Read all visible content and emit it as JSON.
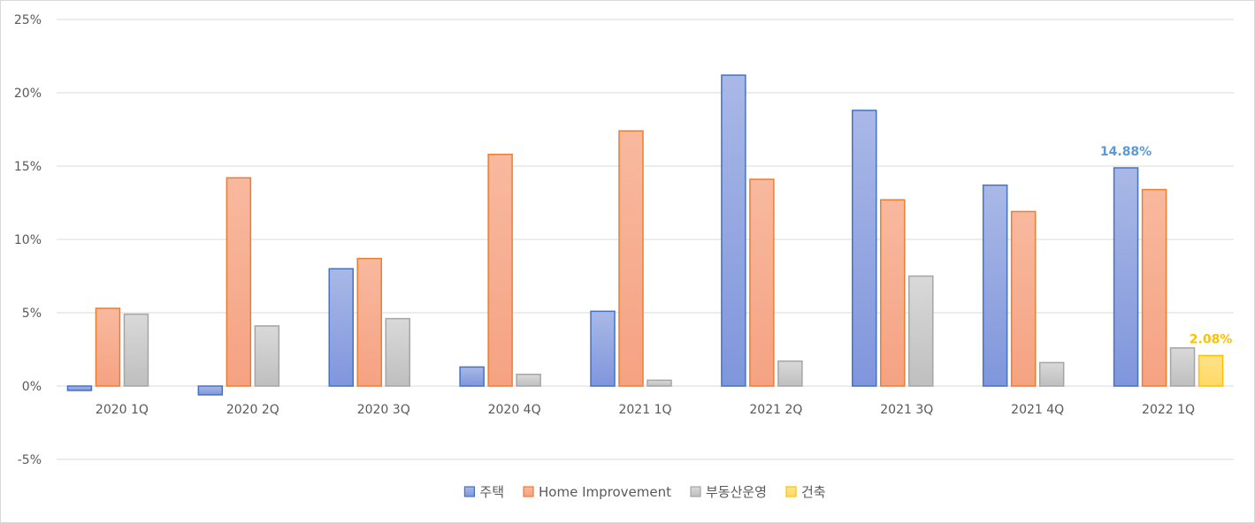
{
  "chart_data": {
    "type": "bar",
    "categories": [
      "2020 1Q",
      "2020 2Q",
      "2020 3Q",
      "2020 4Q",
      "2021 1Q",
      "2021 2Q",
      "2021 3Q",
      "2021 4Q",
      "2022 1Q"
    ],
    "series": [
      {
        "name": "주택",
        "values": [
          -0.3,
          -0.6,
          8.0,
          1.3,
          5.1,
          21.2,
          18.8,
          13.7,
          14.88
        ]
      },
      {
        "name": "Home Improvement",
        "values": [
          5.3,
          14.2,
          8.7,
          15.8,
          17.4,
          14.1,
          12.7,
          11.9,
          13.4
        ]
      },
      {
        "name": "부동산운영",
        "values": [
          4.9,
          4.1,
          4.6,
          0.8,
          0.4,
          1.7,
          7.5,
          1.6,
          2.6
        ]
      },
      {
        "name": "건축",
        "values": [
          null,
          null,
          null,
          null,
          null,
          null,
          null,
          null,
          2.08
        ]
      }
    ],
    "data_labels": [
      {
        "series": 0,
        "category": 8,
        "text": "14.88%"
      },
      {
        "series": 3,
        "category": 8,
        "text": "2.08%"
      }
    ],
    "y_ticks": [
      "25%",
      "20%",
      "15%",
      "10%",
      "5%",
      "0%",
      "-5%"
    ],
    "ylim": [
      -5,
      25
    ],
    "grid": true,
    "legend": "bottom",
    "title": "",
    "xlabel": "",
    "ylabel": "",
    "colors": {
      "series_fill_top": [
        "#a9b8e6",
        "#f8b99f",
        "#d9d9d9",
        "#ffe38a"
      ],
      "series_fill_bottom": [
        "#8096dc",
        "#f5a282",
        "#bfbfbf",
        "#ffd966"
      ],
      "series_stroke": [
        "#4472c4",
        "#ed7d31",
        "#a5a5a5",
        "#ffc000"
      ],
      "label_colors": [
        "#5b9bd5",
        "#ffc000"
      ],
      "grid": "#d9d9d9"
    }
  }
}
